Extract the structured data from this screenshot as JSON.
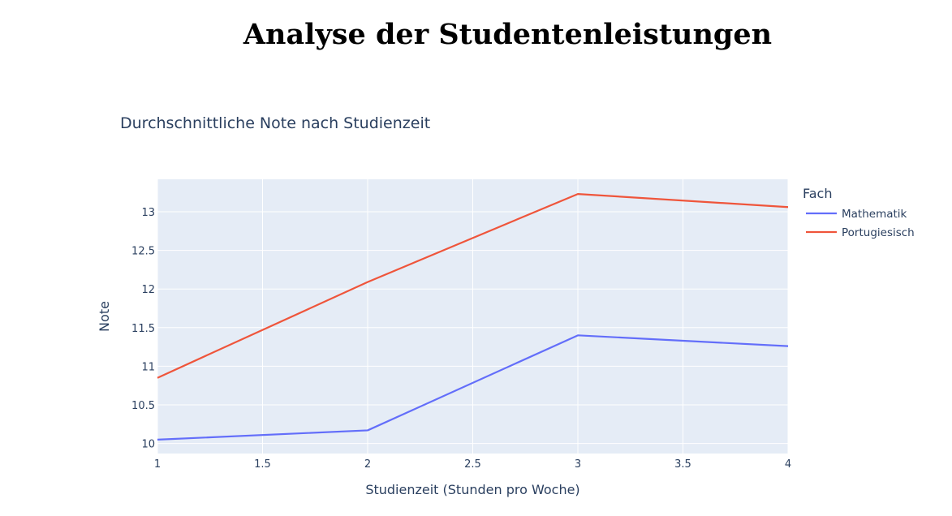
{
  "page": {
    "heading": "Analyse der Studentenleistungen"
  },
  "chart_data": {
    "type": "line",
    "title": "Durchschnittliche Note nach Studienzeit",
    "xlabel": "Studienzeit (Stunden pro Woche)",
    "ylabel": "Note",
    "x": [
      1,
      2,
      3,
      4
    ],
    "xlim": [
      1,
      4
    ],
    "ylim": [
      9.87,
      13.42
    ],
    "xticks": [
      1,
      1.5,
      2,
      2.5,
      3,
      3.5,
      4
    ],
    "xtick_labels": [
      "1",
      "1.5",
      "2",
      "2.5",
      "3",
      "3.5",
      "4"
    ],
    "yticks": [
      10,
      10.5,
      11,
      11.5,
      12,
      12.5,
      13
    ],
    "ytick_labels": [
      "10",
      "10.5",
      "11",
      "11.5",
      "12",
      "12.5",
      "13"
    ],
    "grid": true,
    "legend_title": "Fach",
    "legend_position": "top-right outside",
    "plot_background": "#e5ecf6",
    "series": [
      {
        "name": "Mathematik",
        "color": "#636efa",
        "values": [
          10.05,
          10.17,
          11.4,
          11.26
        ]
      },
      {
        "name": "Portugiesisch",
        "color": "#ef553b",
        "values": [
          10.85,
          12.09,
          13.23,
          13.06
        ]
      }
    ]
  }
}
